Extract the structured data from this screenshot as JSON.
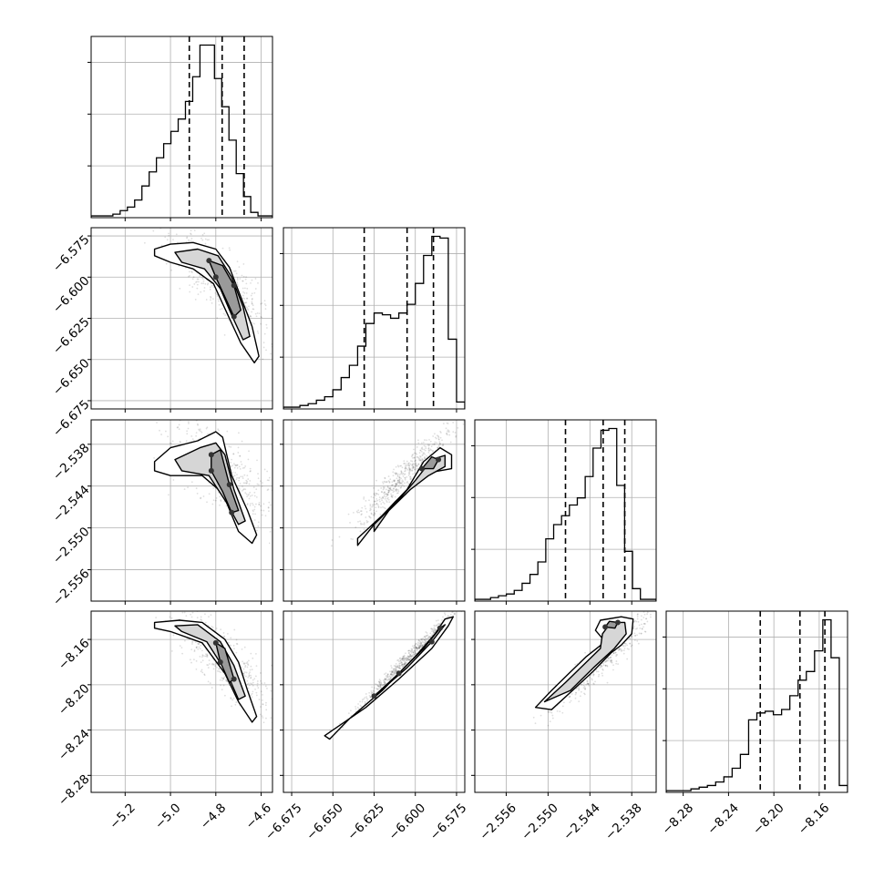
{
  "chart_data": {
    "type": "corner",
    "grid": true,
    "legend": "none",
    "colors": {
      "hist": "#000000",
      "quantile": "#000000",
      "grid": "#b0b0b0",
      "scatter": "#000000"
    },
    "quantiles": [
      0.16,
      0.5,
      0.84
    ],
    "params": [
      {
        "range": [
          -5.35,
          -4.55
        ],
        "x_ticks": [
          "−5.2",
          "−5.0",
          "−4.8",
          "−4.6"
        ],
        "x_tick_values": [
          -5.2,
          -5.0,
          -4.8,
          -4.6
        ],
        "y_ticks": [],
        "y_tick_values": [],
        "quantile_values": [
          -4.917,
          -4.772,
          -4.675
        ],
        "hist_counts": [
          0.01,
          0.01,
          0.01,
          0.02,
          0.04,
          0.06,
          0.1,
          0.18,
          0.26,
          0.34,
          0.42,
          0.49,
          0.56,
          0.66,
          0.8,
          0.98,
          0.98,
          0.79,
          0.63,
          0.44,
          0.25,
          0.12,
          0.03,
          0.01,
          0.01
        ]
      },
      {
        "range": [
          -6.68,
          -6.57
        ],
        "x_ticks": [
          "−6.675",
          "−6.650",
          "−6.625",
          "−6.600",
          "−6.575"
        ],
        "x_tick_values": [
          -6.675,
          -6.65,
          -6.625,
          -6.6,
          -6.575
        ],
        "y_ticks": [
          "−6.575",
          "−6.600",
          "−6.625",
          "−6.650",
          "−6.675"
        ],
        "y_tick_values": [
          -6.575,
          -6.6,
          -6.625,
          -6.65,
          -6.675
        ],
        "quantile_values": [
          -6.631,
          -6.605,
          -6.589
        ],
        "hist_counts": [
          0.01,
          0.01,
          0.02,
          0.03,
          0.05,
          0.07,
          0.11,
          0.18,
          0.25,
          0.36,
          0.49,
          0.55,
          0.54,
          0.52,
          0.55,
          0.6,
          0.72,
          0.88,
          0.99,
          0.98,
          0.4,
          0.04
        ]
      },
      {
        "range": [
          -2.5605,
          -2.5345
        ],
        "x_ticks": [
          "−2.556",
          "−2.550",
          "−2.544",
          "−2.538"
        ],
        "x_tick_values": [
          -2.556,
          -2.55,
          -2.544,
          -2.538
        ],
        "y_ticks": [
          "−2.538",
          "−2.544",
          "−2.550",
          "−2.556"
        ],
        "y_tick_values": [
          -2.538,
          -2.544,
          -2.55,
          -2.556
        ],
        "quantile_values": [
          -2.5475,
          -2.5421,
          -2.539
        ],
        "hist_counts": [
          0.01,
          0.01,
          0.02,
          0.03,
          0.04,
          0.06,
          0.1,
          0.15,
          0.22,
          0.35,
          0.43,
          0.48,
          0.54,
          0.58,
          0.7,
          0.86,
          0.96,
          0.97,
          0.65,
          0.28,
          0.07,
          0.01,
          0.01
        ]
      },
      {
        "range": [
          -8.295,
          -8.135
        ],
        "x_ticks": [
          "−8.28",
          "−8.24",
          "−8.20",
          "−8.16"
        ],
        "x_tick_values": [
          -8.28,
          -8.24,
          -8.2,
          -8.16
        ],
        "y_ticks": [
          "−8.16",
          "−8.20",
          "−8.24",
          "−8.28"
        ],
        "y_tick_values": [
          -8.16,
          -8.2,
          -8.24,
          -8.28
        ],
        "quantile_values": [
          -8.212,
          -8.177,
          -8.155
        ],
        "hist_counts": [
          0.01,
          0.01,
          0.01,
          0.02,
          0.03,
          0.04,
          0.06,
          0.09,
          0.14,
          0.22,
          0.42,
          0.46,
          0.47,
          0.45,
          0.48,
          0.56,
          0.65,
          0.7,
          0.82,
          1.0,
          0.78,
          0.04
        ]
      }
    ],
    "corr": [
      [
        1.0,
        -0.8,
        -0.72,
        -0.8
      ],
      [
        -0.8,
        1.0,
        0.95,
        0.99
      ],
      [
        -0.72,
        0.95,
        1.0,
        0.95
      ],
      [
        -0.8,
        0.99,
        0.95,
        1.0
      ]
    ],
    "contours": {
      "1_0": [
        [
          [
            -5.07,
            -6.583
          ],
          [
            -5.0,
            -6.58
          ],
          [
            -4.9,
            -6.579
          ],
          [
            -4.8,
            -6.583
          ],
          [
            -4.74,
            -6.594
          ],
          [
            -4.69,
            -6.612
          ],
          [
            -4.64,
            -6.63
          ],
          [
            -4.61,
            -6.648
          ],
          [
            -4.63,
            -6.652
          ],
          [
            -4.69,
            -6.64
          ],
          [
            -4.75,
            -6.622
          ],
          [
            -4.81,
            -6.604
          ],
          [
            -4.9,
            -6.595
          ],
          [
            -5.0,
            -6.591
          ],
          [
            -5.07,
            -6.587
          ],
          [
            -5.07,
            -6.583
          ]
        ],
        [
          [
            -4.98,
            -6.585
          ],
          [
            -4.88,
            -6.583
          ],
          [
            -4.79,
            -6.587
          ],
          [
            -4.73,
            -6.6
          ],
          [
            -4.68,
            -6.618
          ],
          [
            -4.65,
            -6.636
          ],
          [
            -4.68,
            -6.638
          ],
          [
            -4.73,
            -6.623
          ],
          [
            -4.78,
            -6.607
          ],
          [
            -4.85,
            -6.595
          ],
          [
            -4.95,
            -6.591
          ],
          [
            -4.98,
            -6.585
          ]
        ],
        [
          [
            -4.83,
            -6.59
          ],
          [
            -4.77,
            -6.593
          ],
          [
            -4.72,
            -6.605
          ],
          [
            -4.69,
            -6.62
          ],
          [
            -4.72,
            -6.624
          ],
          [
            -4.76,
            -6.612
          ],
          [
            -4.8,
            -6.6
          ],
          [
            -4.83,
            -6.59
          ]
        ]
      ],
      "2_0": [
        [
          [
            -5.07,
            -2.5405
          ],
          [
            -5.0,
            -2.5385
          ],
          [
            -4.88,
            -2.5375
          ],
          [
            -4.8,
            -2.5362
          ],
          [
            -4.77,
            -2.537
          ],
          [
            -4.73,
            -2.5425
          ],
          [
            -4.66,
            -2.5475
          ],
          [
            -4.62,
            -2.551
          ],
          [
            -4.64,
            -2.5522
          ],
          [
            -4.7,
            -2.5505
          ],
          [
            -4.77,
            -2.545
          ],
          [
            -4.86,
            -2.5425
          ],
          [
            -5.0,
            -2.5425
          ],
          [
            -5.07,
            -2.5418
          ],
          [
            -5.07,
            -2.5405
          ]
        ],
        [
          [
            -4.98,
            -2.5402
          ],
          [
            -4.87,
            -2.5385
          ],
          [
            -4.8,
            -2.5378
          ],
          [
            -4.76,
            -2.5395
          ],
          [
            -4.72,
            -2.5445
          ],
          [
            -4.67,
            -2.549
          ],
          [
            -4.7,
            -2.5495
          ],
          [
            -4.75,
            -2.5465
          ],
          [
            -4.83,
            -2.5425
          ],
          [
            -4.95,
            -2.5418
          ],
          [
            -4.98,
            -2.5402
          ]
        ],
        [
          [
            -4.82,
            -2.5395
          ],
          [
            -4.78,
            -2.5388
          ],
          [
            -4.74,
            -2.5438
          ],
          [
            -4.7,
            -2.5475
          ],
          [
            -4.73,
            -2.5478
          ],
          [
            -4.77,
            -2.5448
          ],
          [
            -4.82,
            -2.5418
          ],
          [
            -4.82,
            -2.5395
          ]
        ]
      ],
      "2_1": [
        [
          [
            -6.635,
            -2.5515
          ],
          [
            -6.62,
            -2.5482
          ],
          [
            -6.605,
            -2.5445
          ],
          [
            -6.595,
            -2.5405
          ],
          [
            -6.585,
            -2.5385
          ],
          [
            -6.578,
            -2.5395
          ],
          [
            -6.578,
            -2.5415
          ],
          [
            -6.59,
            -2.542
          ],
          [
            -6.6,
            -2.5435
          ],
          [
            -6.612,
            -2.5462
          ],
          [
            -6.625,
            -2.5495
          ],
          [
            -6.635,
            -2.5525
          ],
          [
            -6.635,
            -2.5515
          ]
        ],
        [
          [
            -6.625,
            -2.5495
          ],
          [
            -6.612,
            -2.5465
          ],
          [
            -6.6,
            -2.5432
          ],
          [
            -6.59,
            -2.5402
          ],
          [
            -6.582,
            -2.5396
          ],
          [
            -6.582,
            -2.5412
          ],
          [
            -6.592,
            -2.5425
          ],
          [
            -6.603,
            -2.5445
          ],
          [
            -6.616,
            -2.5475
          ],
          [
            -6.625,
            -2.5505
          ],
          [
            -6.625,
            -2.5495
          ]
        ],
        [
          [
            -6.596,
            -2.5415
          ],
          [
            -6.59,
            -2.5398
          ],
          [
            -6.586,
            -2.5402
          ],
          [
            -6.589,
            -2.5415
          ],
          [
            -6.596,
            -2.5415
          ]
        ]
      ],
      "3_0": [
        [
          [
            -5.07,
            -8.145
          ],
          [
            -4.96,
            -8.143
          ],
          [
            -4.86,
            -8.145
          ],
          [
            -4.76,
            -8.16
          ],
          [
            -4.7,
            -8.18
          ],
          [
            -4.66,
            -8.205
          ],
          [
            -4.62,
            -8.228
          ],
          [
            -4.64,
            -8.233
          ],
          [
            -4.7,
            -8.215
          ],
          [
            -4.76,
            -8.19
          ],
          [
            -4.86,
            -8.163
          ],
          [
            -5.0,
            -8.153
          ],
          [
            -5.07,
            -8.15
          ],
          [
            -5.07,
            -8.145
          ]
        ],
        [
          [
            -4.98,
            -8.148
          ],
          [
            -4.88,
            -8.147
          ],
          [
            -4.78,
            -8.162
          ],
          [
            -4.72,
            -8.183
          ],
          [
            -4.67,
            -8.21
          ],
          [
            -4.7,
            -8.213
          ],
          [
            -4.75,
            -8.19
          ],
          [
            -4.84,
            -8.162
          ],
          [
            -4.95,
            -8.153
          ],
          [
            -4.98,
            -8.148
          ]
        ],
        [
          [
            -4.8,
            -8.163
          ],
          [
            -4.76,
            -8.168
          ],
          [
            -4.72,
            -8.195
          ],
          [
            -4.74,
            -8.198
          ],
          [
            -4.78,
            -8.18
          ],
          [
            -4.8,
            -8.163
          ]
        ]
      ],
      "3_1": [
        [
          [
            -6.655,
            -8.245
          ],
          [
            -6.63,
            -8.22
          ],
          [
            -6.61,
            -8.195
          ],
          [
            -6.59,
            -8.168
          ],
          [
            -6.58,
            -8.148
          ],
          [
            -6.577,
            -8.14
          ],
          [
            -6.582,
            -8.142
          ],
          [
            -6.588,
            -8.155
          ],
          [
            -6.6,
            -8.175
          ],
          [
            -6.62,
            -8.205
          ],
          [
            -6.64,
            -8.23
          ],
          [
            -6.652,
            -8.248
          ],
          [
            -6.655,
            -8.245
          ]
        ],
        [
          [
            -6.625,
            -8.21
          ],
          [
            -6.605,
            -8.185
          ],
          [
            -6.59,
            -8.162
          ],
          [
            -6.582,
            -8.147
          ],
          [
            -6.585,
            -8.15
          ],
          [
            -6.595,
            -8.168
          ],
          [
            -6.61,
            -8.19
          ],
          [
            -6.625,
            -8.21
          ]
        ]
      ],
      "3_2": [
        [
          [
            -2.5518,
            -8.22
          ],
          [
            -2.5495,
            -8.205
          ],
          [
            -2.547,
            -8.19
          ],
          [
            -2.5445,
            -8.175
          ],
          [
            -2.5418,
            -8.162
          ],
          [
            -2.5432,
            -8.152
          ],
          [
            -2.5425,
            -8.143
          ],
          [
            -2.5395,
            -8.14
          ],
          [
            -2.5378,
            -8.142
          ],
          [
            -2.538,
            -8.155
          ],
          [
            -2.5395,
            -8.165
          ],
          [
            -2.541,
            -8.172
          ],
          [
            -2.5435,
            -8.188
          ],
          [
            -2.5465,
            -8.205
          ],
          [
            -2.5495,
            -8.222
          ],
          [
            -2.5518,
            -8.22
          ]
        ],
        [
          [
            -2.5505,
            -8.215
          ],
          [
            -2.5475,
            -8.198
          ],
          [
            -2.545,
            -8.183
          ],
          [
            -2.5425,
            -8.168
          ],
          [
            -2.5422,
            -8.155
          ],
          [
            -2.541,
            -8.145
          ],
          [
            -2.539,
            -8.145
          ],
          [
            -2.5388,
            -8.155
          ],
          [
            -2.5405,
            -8.168
          ],
          [
            -2.5435,
            -8.185
          ],
          [
            -2.5468,
            -8.205
          ],
          [
            -2.5505,
            -8.215
          ]
        ],
        [
          [
            -2.5418,
            -8.149
          ],
          [
            -2.5412,
            -8.144
          ],
          [
            -2.54,
            -8.145
          ],
          [
            -2.5404,
            -8.15
          ],
          [
            -2.5418,
            -8.149
          ]
        ]
      ]
    }
  }
}
